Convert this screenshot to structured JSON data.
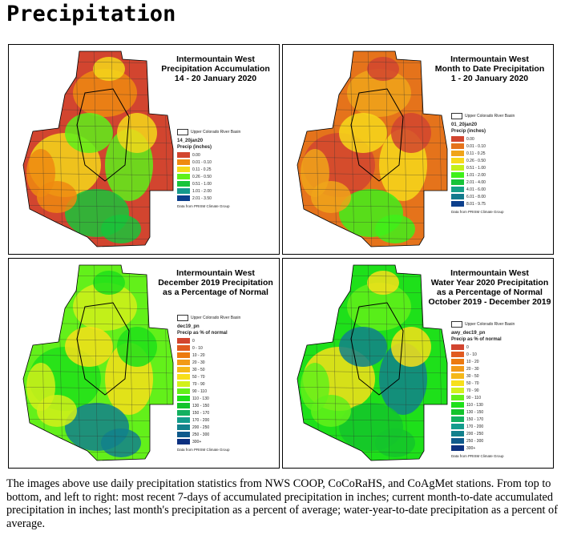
{
  "page_title": "Precipitation",
  "basin_label": "Upper Colorado River Basin",
  "source": "Data from PRISM Climate Group",
  "panels": [
    {
      "title": [
        "Intermountain West",
        "Precipitation Accumulation",
        "14 - 20 January 2020"
      ],
      "layer": "14_20jan20",
      "legend_title": "Precip (inches)",
      "items": [
        {
          "label": "0.00",
          "color": "#d2452f"
        },
        {
          "label": "0.01 - 0.10",
          "color": "#ef8a10"
        },
        {
          "label": "0.11 - 0.25",
          "color": "#f5d81a"
        },
        {
          "label": "0.26 - 0.50",
          "color": "#5ef01a"
        },
        {
          "label": "0.51 - 1.00",
          "color": "#19c43a"
        },
        {
          "label": "1.01 - 2.00",
          "color": "#15998c"
        },
        {
          "label": "2.01 - 3.50",
          "color": "#0c3f8c"
        }
      ],
      "map_colors": [
        "#d2452f",
        "#ef8a10",
        "#f5d81a",
        "#5ef01a",
        "#19c43a"
      ]
    },
    {
      "title": [
        "Intermountain West",
        "Month to Date Precipitation",
        "1 - 20 January 2020"
      ],
      "layer": "01_20jan20",
      "legend_title": "Precip (inches)",
      "items": [
        {
          "label": "0.00",
          "color": "#d2452f"
        },
        {
          "label": "0.01 - 0.10",
          "color": "#e5731b"
        },
        {
          "label": "0.11 - 0.25",
          "color": "#f0a41a"
        },
        {
          "label": "0.26 - 0.50",
          "color": "#f7d91a"
        },
        {
          "label": "0.51 - 1.00",
          "color": "#c4f01a"
        },
        {
          "label": "1.01 - 2.00",
          "color": "#3ff01a"
        },
        {
          "label": "2.01 - 4.00",
          "color": "#19c43a"
        },
        {
          "label": "4.01 - 6.00",
          "color": "#16a088"
        },
        {
          "label": "6.01 - 8.00",
          "color": "#137a8c"
        },
        {
          "label": "8.01 - 9.75",
          "color": "#0c3f8c"
        }
      ],
      "map_colors": [
        "#e5731b",
        "#f0a41a",
        "#d2452f",
        "#f7d91a",
        "#3ff01a"
      ]
    },
    {
      "title": [
        "Intermountain West",
        "December 2019 Precipitation",
        "as a Percentage of Normal"
      ],
      "layer": "dec19_pn",
      "legend_title": "Precip as % of normal",
      "items": [
        {
          "label": "0",
          "color": "#d2452f"
        },
        {
          "label": "0 - 10",
          "color": "#e15a20"
        },
        {
          "label": "10 - 20",
          "color": "#ec7a10"
        },
        {
          "label": "20 - 30",
          "color": "#f29a18"
        },
        {
          "label": "30 - 50",
          "color": "#f5b81a"
        },
        {
          "label": "50 - 70",
          "color": "#f7df1a"
        },
        {
          "label": "70 - 90",
          "color": "#d2f01a"
        },
        {
          "label": "90 - 110",
          "color": "#63f01a"
        },
        {
          "label": "110 - 130",
          "color": "#1ee01a"
        },
        {
          "label": "130 - 150",
          "color": "#14c42c"
        },
        {
          "label": "150 - 170",
          "color": "#12b060"
        },
        {
          "label": "170 - 200",
          "color": "#139c8c"
        },
        {
          "label": "200 - 250",
          "color": "#12808c"
        },
        {
          "label": "250 - 300",
          "color": "#0f5a8c"
        },
        {
          "label": "300+",
          "color": "#0c3080"
        }
      ],
      "map_colors": [
        "#63f01a",
        "#d2f01a",
        "#1ee01a",
        "#f7df1a",
        "#12808c"
      ]
    },
    {
      "title": [
        "Intermountain West",
        "Water Year 2020 Precipitation",
        "as a Percentage of Normal",
        "October 2019 - December 2019"
      ],
      "layer": "awy_dec19_pn",
      "legend_title": "Precip as % of normal",
      "items": [
        {
          "label": "0",
          "color": "#d2452f"
        },
        {
          "label": "0 - 10",
          "color": "#e15a20"
        },
        {
          "label": "10 - 20",
          "color": "#ec7a10"
        },
        {
          "label": "20 - 30",
          "color": "#f29a18"
        },
        {
          "label": "30 - 50",
          "color": "#f5b81a"
        },
        {
          "label": "50 - 70",
          "color": "#f7df1a"
        },
        {
          "label": "70 - 90",
          "color": "#d2f01a"
        },
        {
          "label": "90 - 110",
          "color": "#63f01a"
        },
        {
          "label": "110 - 130",
          "color": "#1ee01a"
        },
        {
          "label": "130 - 150",
          "color": "#14c42c"
        },
        {
          "label": "150 - 170",
          "color": "#12b060"
        },
        {
          "label": "170 - 200",
          "color": "#139c8c"
        },
        {
          "label": "200 - 250",
          "color": "#12808c"
        },
        {
          "label": "250 - 300",
          "color": "#0f5a8c"
        },
        {
          "label": "300+",
          "color": "#0c3080"
        }
      ],
      "map_colors": [
        "#1ee01a",
        "#63f01a",
        "#f7df1a",
        "#12808c",
        "#14c42c"
      ]
    }
  ],
  "caption": "The images above use daily precipitation statistics from NWS COOP, CoCoRaHS, and CoAgMet stations. From top to bottom, and left to right: most recent 7-days of accumulated precipitation in inches; current month-to-date accumulated precipitation in inches; last month's precipitation as a percent of average; water-year-to-date precipitation as a percent of average."
}
